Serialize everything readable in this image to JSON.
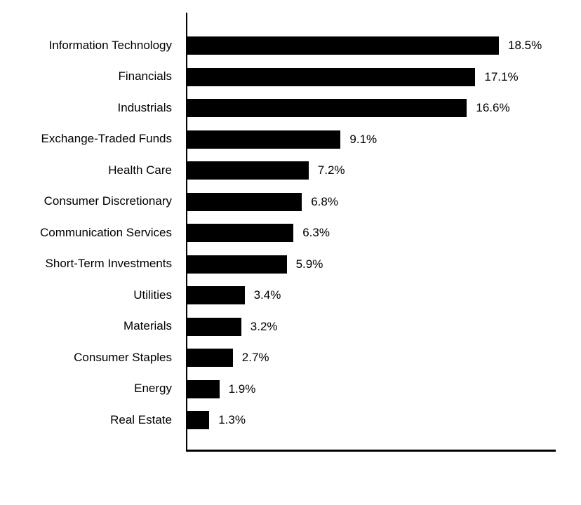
{
  "chart_data": {
    "type": "bar",
    "orientation": "horizontal",
    "title": "",
    "xlabel": "",
    "ylabel": "",
    "xlim": [
      0,
      21.9
    ],
    "grid": false,
    "bar_color": "#000000",
    "background_color": "#ffffff",
    "categories": [
      "Information Technology",
      "Financials",
      "Industrials",
      "Exchange-Traded Funds",
      "Health Care",
      "Consumer Discretionary",
      "Communication Services",
      "Short-Term Investments",
      "Utilities",
      "Materials",
      "Consumer Staples",
      "Energy",
      "Real Estate"
    ],
    "values": [
      18.5,
      17.1,
      16.6,
      9.1,
      7.2,
      6.8,
      6.3,
      5.9,
      3.4,
      3.2,
      2.7,
      1.9,
      1.3
    ],
    "value_labels": [
      "18.5%",
      "17.1%",
      "16.6%",
      "9.1%",
      "7.2%",
      "6.8%",
      "6.3%",
      "5.9%",
      "3.4%",
      "3.2%",
      "2.7%",
      "1.9%",
      "1.3%"
    ]
  }
}
